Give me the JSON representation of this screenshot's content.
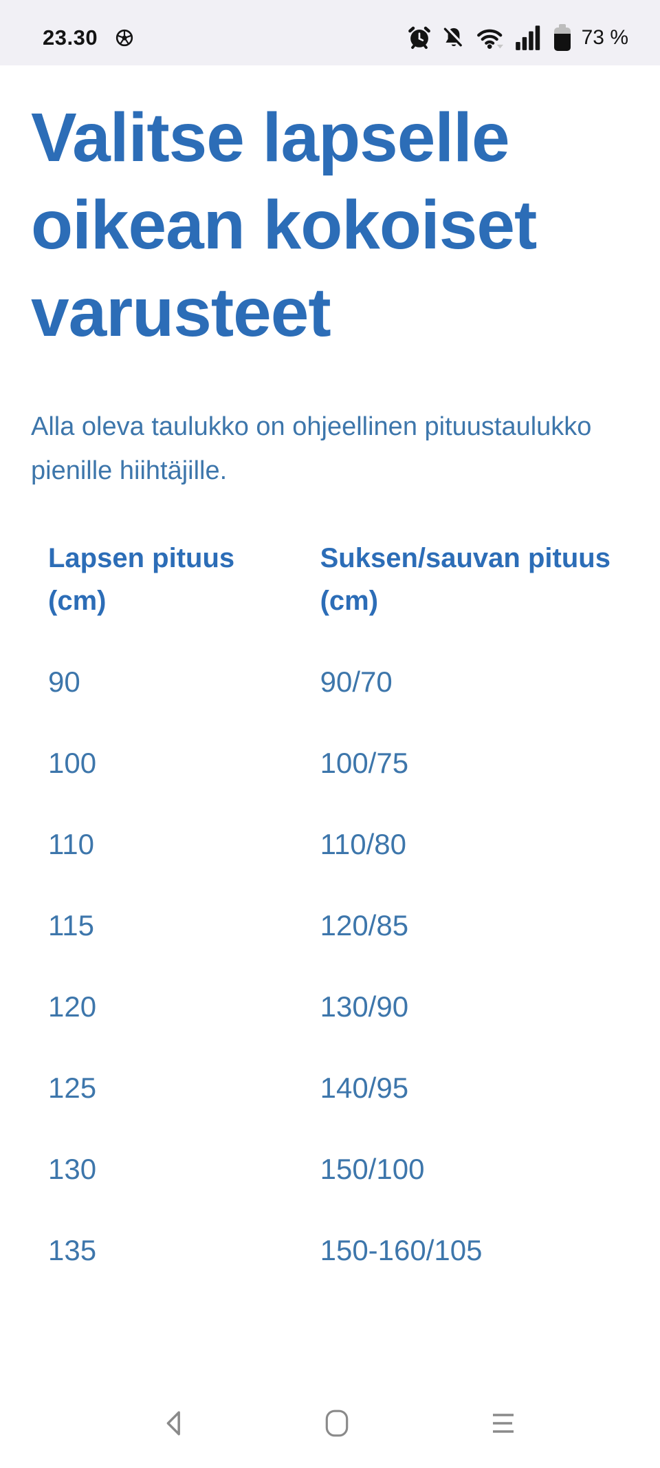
{
  "status_bar": {
    "time": "23.30",
    "battery_percent": "73 %",
    "icons": {
      "left": [
        "soccer-ball-notification-icon"
      ],
      "right": [
        "alarm-clock-icon",
        "bell-muted-icon",
        "wifi-icon",
        "signal-strength-icon",
        "battery-icon"
      ]
    }
  },
  "page": {
    "title": "Valitse lapselle oikean kokoiset varusteet",
    "intro": "Alla oleva taulukko on ohjeellinen pituustaulukko pienille hiihtäjille."
  },
  "table": {
    "col1_line1": "Lapsen pituus",
    "col1_line2": "(cm)",
    "col2_line1": "Suksen/sauvan pituus",
    "col2_line2": "(cm)",
    "rows": [
      [
        "90",
        "90/70"
      ],
      [
        "100",
        "100/75"
      ],
      [
        "110",
        "110/80"
      ],
      [
        "115",
        "120/85"
      ],
      [
        "120",
        "130/90"
      ],
      [
        "125",
        "140/95"
      ],
      [
        "130",
        "150/100"
      ],
      [
        "135",
        "150-160/105"
      ]
    ]
  },
  "nav_bar": {
    "back": "back",
    "home": "home",
    "recents": "recents"
  },
  "colors": {
    "heading_blue": "#2c6db7",
    "body_blue": "#3d76ab",
    "status_bar_bg": "#f1f0f5",
    "status_fg": "#141414",
    "nav_icon_gray": "#8a8a8a",
    "battery_empty_gray": "#bdbdbd",
    "page_bg": "#ffffff"
  }
}
